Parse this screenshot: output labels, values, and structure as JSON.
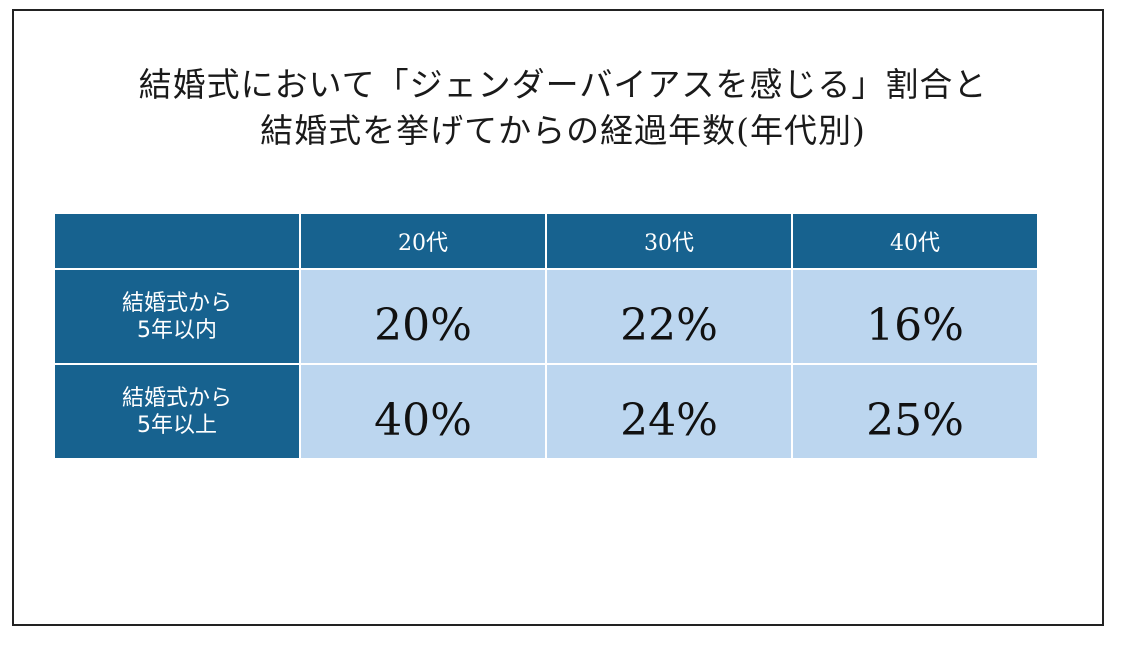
{
  "title": {
    "line1": "結婚式において「ジェンダーバイアスを感じる」割合と",
    "line2": "結婚式を挙げてからの経過年数(年代別)"
  },
  "chart_data": {
    "type": "table",
    "columns": [
      "",
      "20代",
      "30代",
      "40代"
    ],
    "rows": [
      {
        "label_lines": [
          "結婚式から",
          "5年以内"
        ],
        "values": [
          "20%",
          "22%",
          "16%"
        ]
      },
      {
        "label_lines": [
          "結婚式から",
          "5年以上"
        ],
        "values": [
          "40%",
          "24%",
          "25%"
        ]
      }
    ]
  },
  "colors": {
    "header_bg": "#17628f",
    "cell_bg": "#bcd6ef",
    "text_dark": "#111111",
    "text_light": "#ffffff"
  }
}
